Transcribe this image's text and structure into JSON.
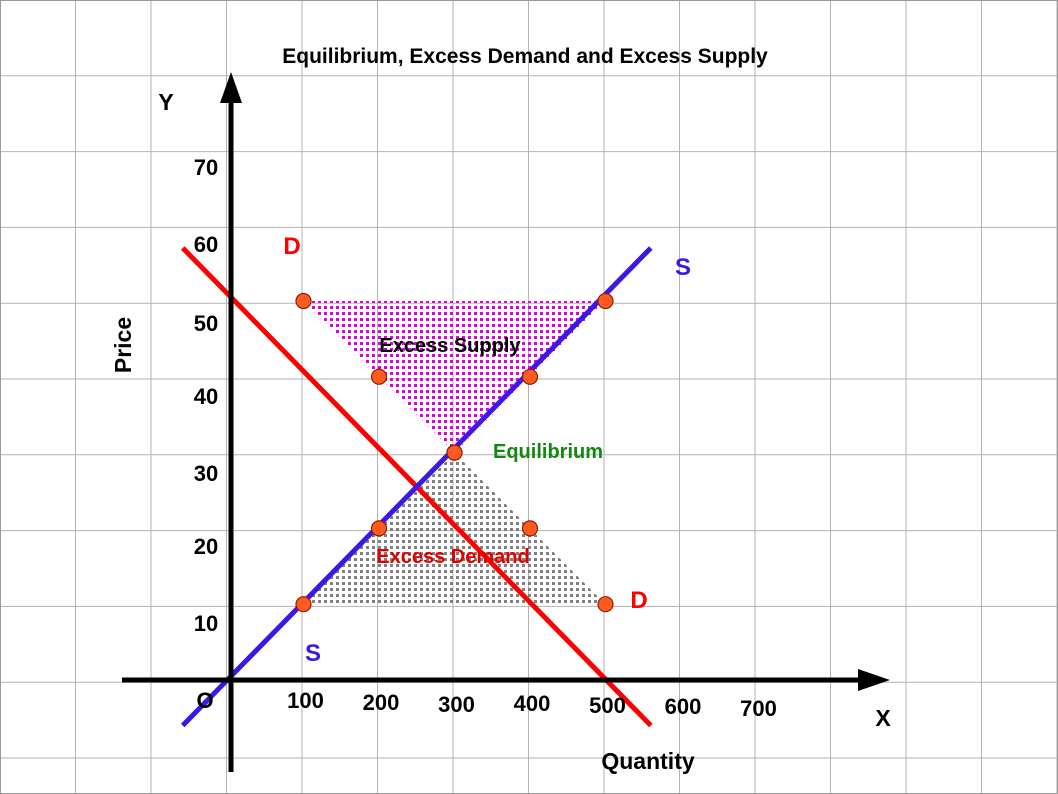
{
  "chart_data": {
    "type": "line",
    "title": "Equilibrium, Excess Demand and Excess Supply",
    "xlabel": "Quantity",
    "ylabel": "Price",
    "x_axis_letter": "X",
    "y_axis_letter": "Y",
    "origin_label": "O",
    "x_ticks": [
      "100",
      "200",
      "300",
      "400",
      "500",
      "600",
      "700"
    ],
    "y_ticks": [
      "10",
      "20",
      "30",
      "40",
      "50",
      "60",
      "70"
    ],
    "grid": true,
    "series": [
      {
        "name": "D",
        "color": "#ff0000",
        "line": [
          [
            -60,
            57
          ],
          [
            560,
            -6
          ]
        ],
        "points": [
          [
            100,
            50
          ],
          [
            200,
            40
          ],
          [
            300,
            30
          ],
          [
            400,
            20
          ],
          [
            500,
            10
          ]
        ]
      },
      {
        "name": "S",
        "color": "#3f17e5",
        "line": [
          [
            -60,
            -6
          ],
          [
            560,
            57
          ]
        ],
        "points": [
          [
            100,
            10
          ],
          [
            200,
            20
          ],
          [
            300,
            30
          ],
          [
            400,
            40
          ],
          [
            500,
            50
          ]
        ]
      }
    ],
    "regions": [
      {
        "label": "Excess Supply",
        "color": "#e000e0",
        "label_color": "#000000",
        "polygon": [
          [
            100,
            50
          ],
          [
            500,
            50
          ],
          [
            300,
            30
          ]
        ]
      },
      {
        "label": "Excess Demand",
        "color": "#808080",
        "label_color": "#dd0000",
        "polygon": [
          [
            100,
            10
          ],
          [
            500,
            10
          ],
          [
            300,
            30
          ]
        ]
      }
    ],
    "equilibrium": {
      "label": "Equilibrium",
      "color": "#118811",
      "x": 300,
      "y": 30
    },
    "point_color": "#ff5a1f"
  }
}
